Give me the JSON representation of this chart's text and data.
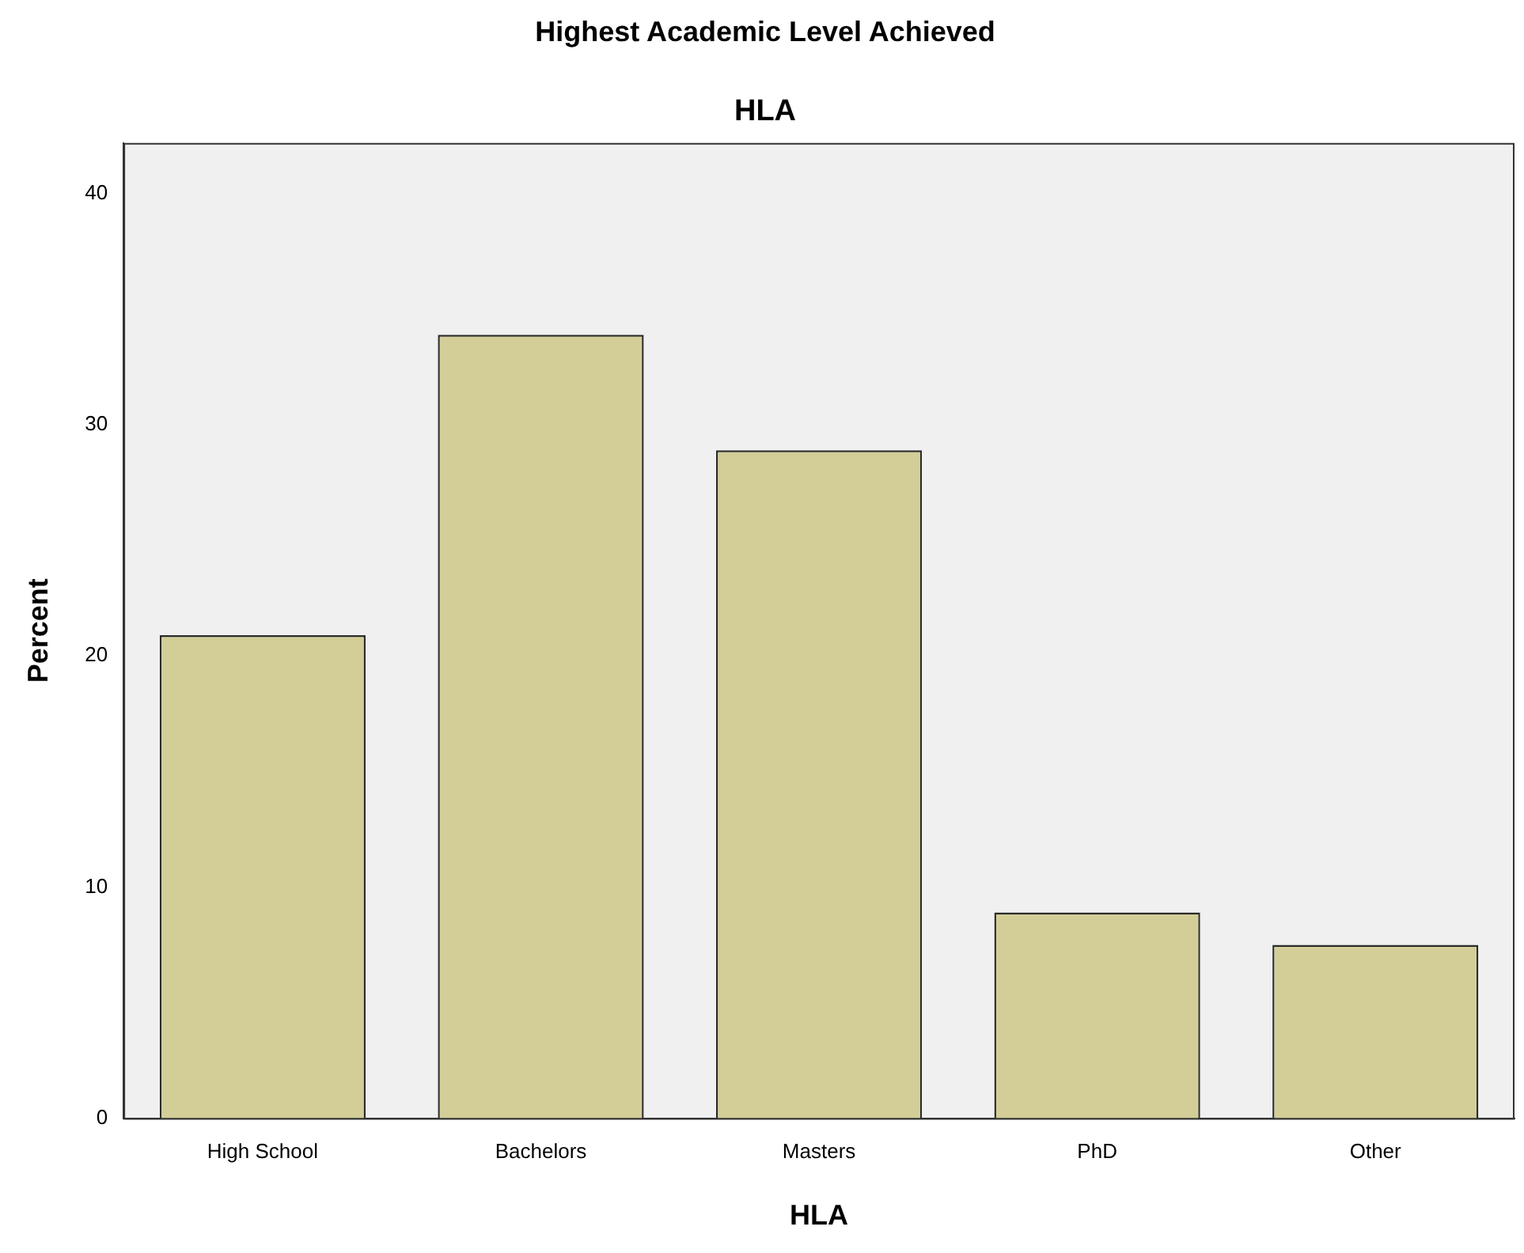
{
  "chart_data": {
    "type": "bar",
    "title": "Highest Academic Level Achieved",
    "subtitle": "HLA",
    "xlabel": "HLA",
    "ylabel": "Percent",
    "categories": [
      "High School",
      "Bachelors",
      "Masters",
      "PhD",
      "Other"
    ],
    "values": [
      20.9,
      33.9,
      28.9,
      8.9,
      7.5
    ],
    "color": "#d3ce97",
    "ylim": [
      0,
      42.2
    ],
    "yticks": [
      0,
      10,
      20,
      30,
      40
    ],
    "grid": false,
    "legend": false
  }
}
